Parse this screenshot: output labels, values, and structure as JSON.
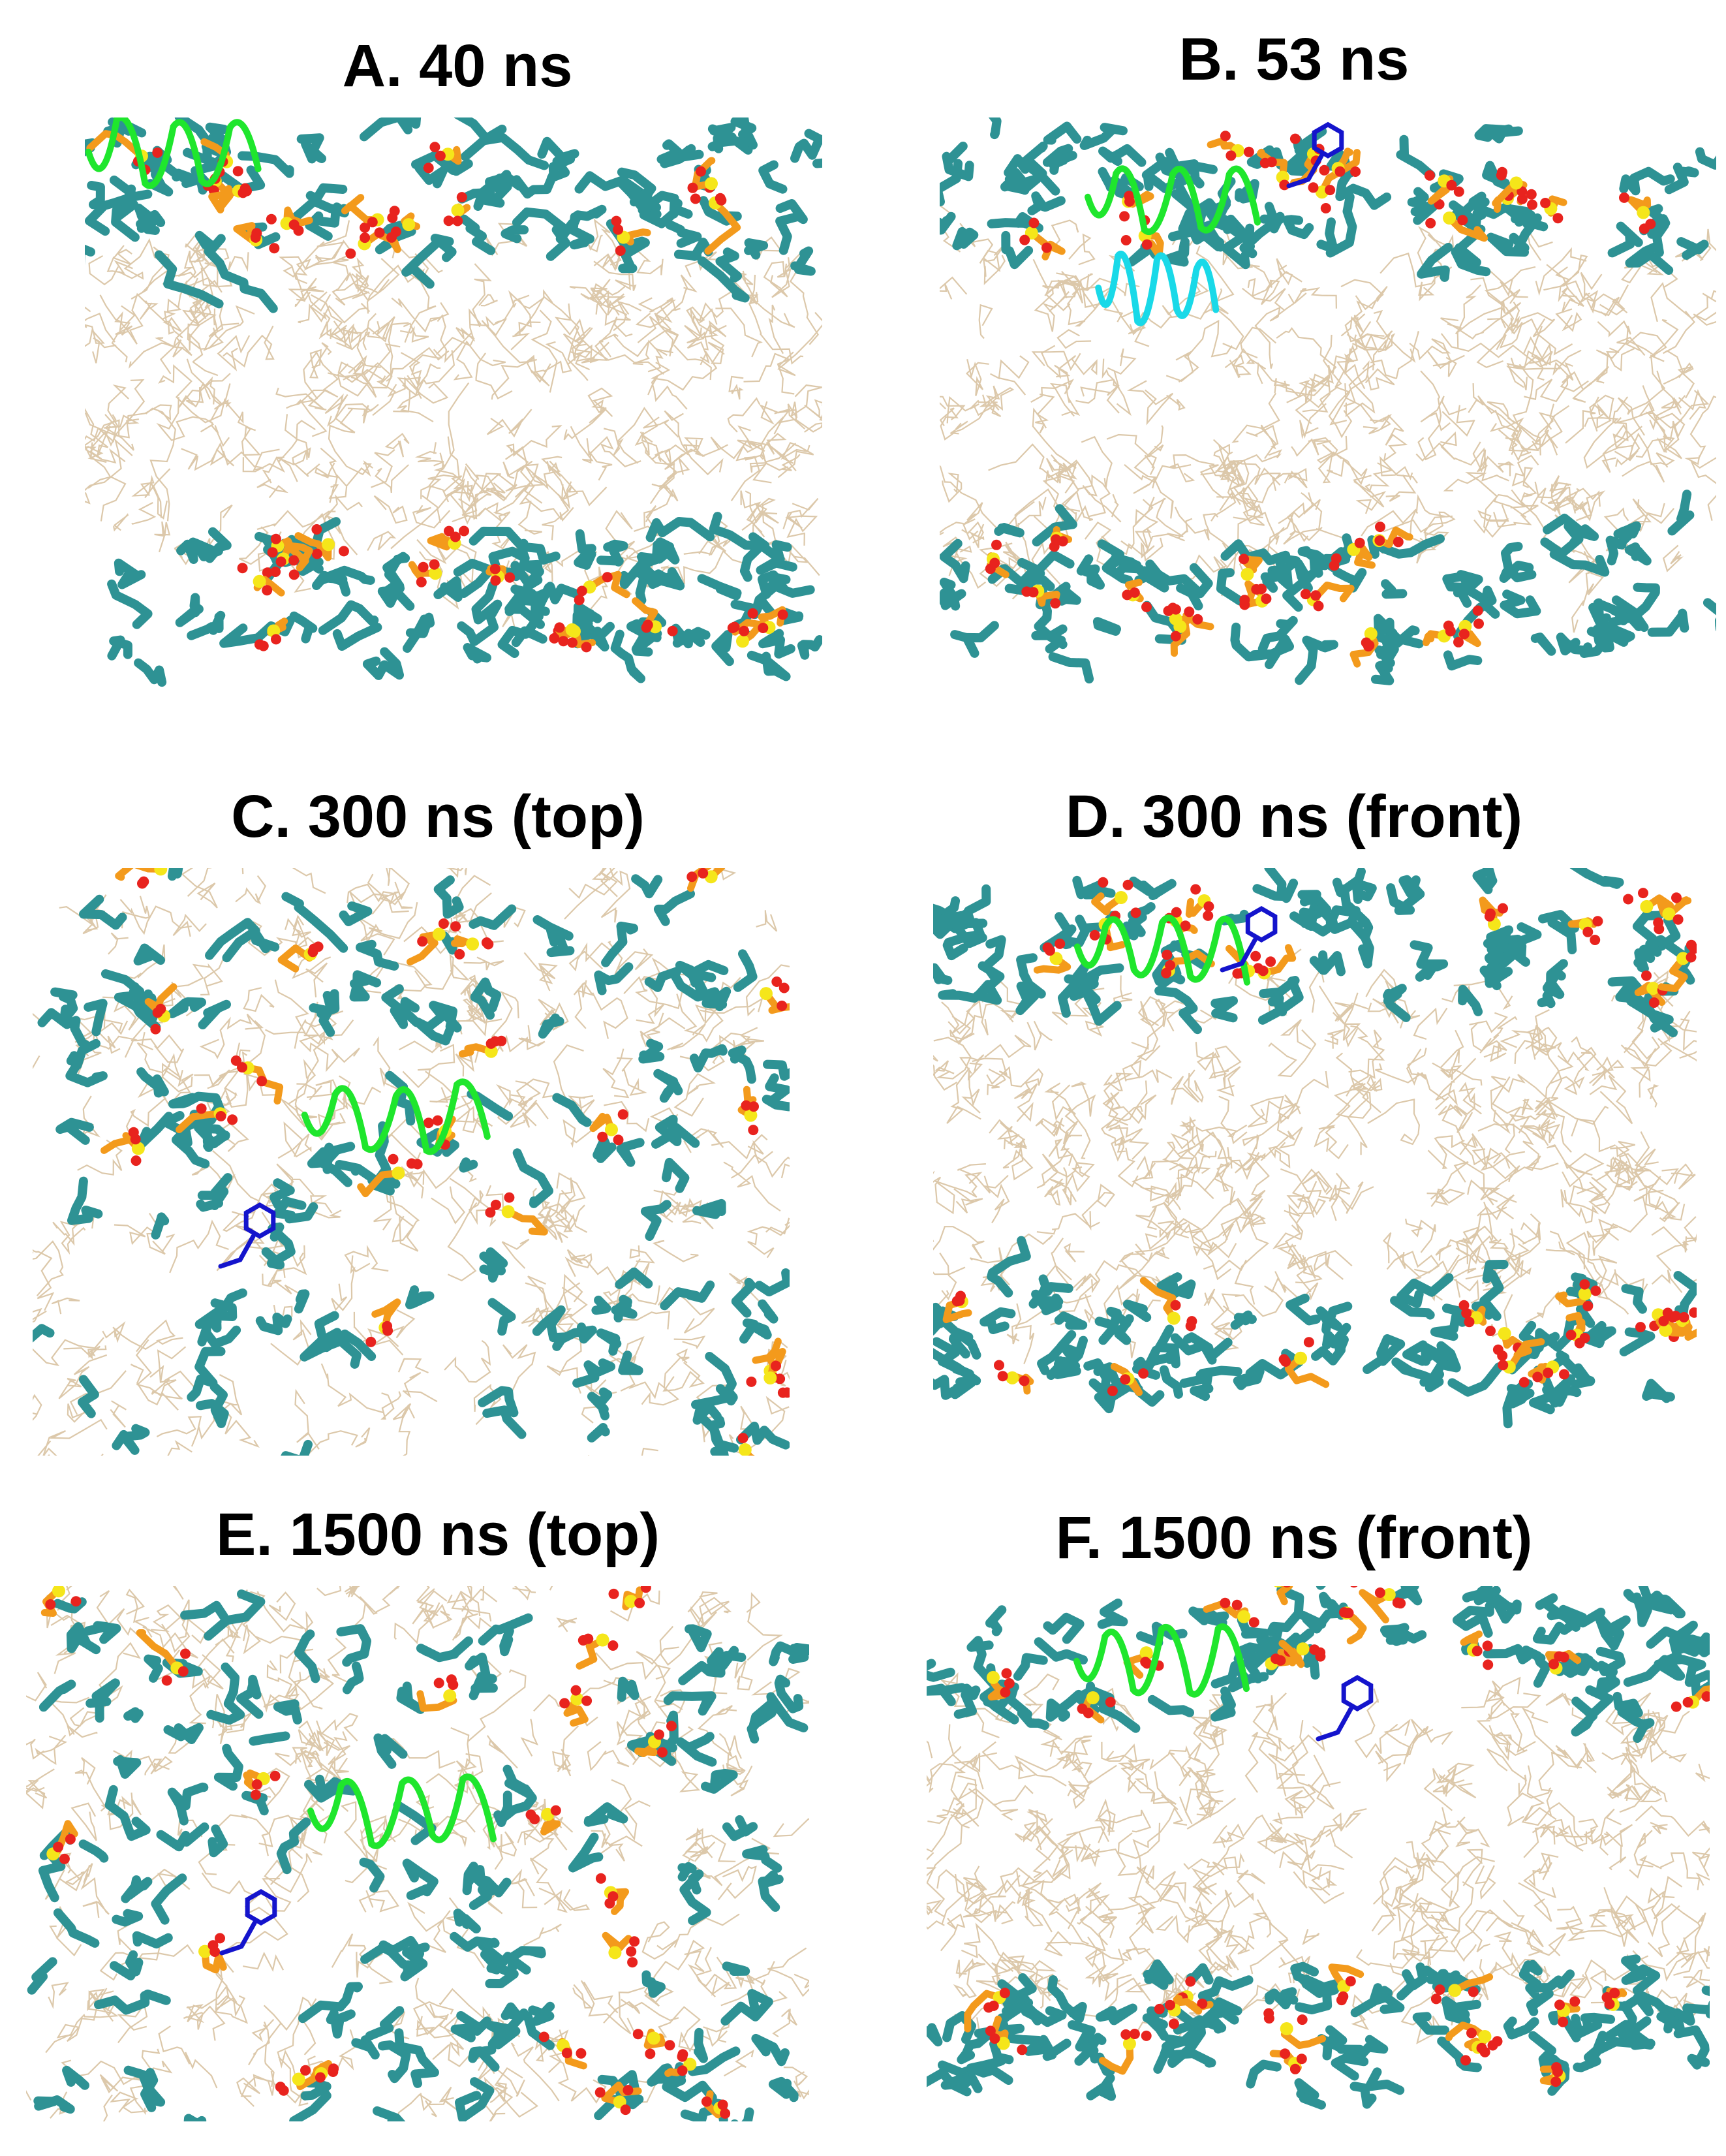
{
  "figure": {
    "panels": [
      {
        "id": "A",
        "title": "A. 40 ns",
        "view": "front",
        "upper_peptide": true,
        "upper_ring": false,
        "bulge": false
      },
      {
        "id": "B",
        "title": "B. 53 ns",
        "view": "front",
        "upper_peptide": true,
        "upper_ring": true,
        "bulge": false
      },
      {
        "id": "C",
        "title": "C. 300 ns (top)",
        "view": "top",
        "upper_peptide": true,
        "upper_ring": true,
        "bulge": false
      },
      {
        "id": "D",
        "title": "D. 300 ns (front)",
        "view": "front",
        "upper_peptide": true,
        "upper_ring": true,
        "bulge": false
      },
      {
        "id": "E",
        "title": "E. 1500 ns (top)",
        "view": "top",
        "upper_peptide": true,
        "upper_ring": true,
        "bulge": false
      },
      {
        "id": "F",
        "title": "F. 1500 ns (front)",
        "view": "front",
        "upper_peptide": true,
        "upper_ring": true,
        "bulge": true
      }
    ],
    "colors": {
      "lipid_tail": "#d6bf9c",
      "headgroup": "#2e9294",
      "phosphate_orange": "#f39a1c",
      "phosphate_yellow": "#f5e61a",
      "oxygen_red": "#e8231e",
      "peptide_green": "#1fe62d",
      "peptide_cyan": "#19d9e8",
      "aromatic_blue": "#1414cc"
    }
  }
}
